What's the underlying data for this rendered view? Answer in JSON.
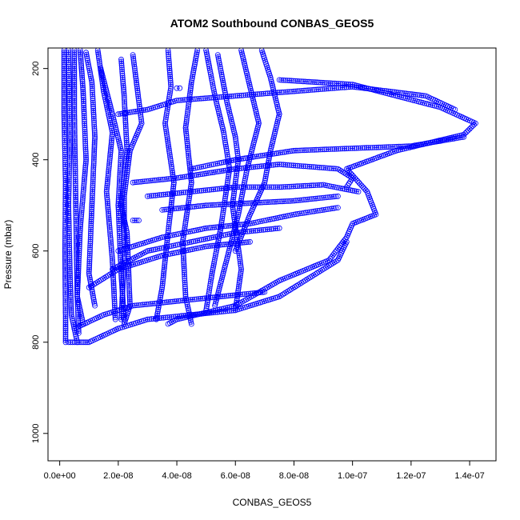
{
  "chart_data": {
    "type": "scatter",
    "title": "ATOM2 Southbound CONBAS_GEOS5",
    "xlabel": "CONBAS_GEOS5",
    "ylabel": "Pressure (mbar)",
    "xlim": [
      -4e-09,
      1.49e-07
    ],
    "ylim": [
      1060,
      155
    ],
    "y_reversed": true,
    "x_ticks": [
      0,
      2e-08,
      4e-08,
      6e-08,
      8e-08,
      1e-07,
      1.2e-07,
      1.4e-07
    ],
    "x_tick_labels": [
      "0.0e+00",
      "2.0e-08",
      "4.0e-08",
      "6.0e-08",
      "8.0e-08",
      "1.0e-07",
      "1.2e-07",
      "1.4e-07"
    ],
    "y_ticks": [
      200,
      400,
      600,
      800,
      1000
    ],
    "y_tick_labels": [
      "200",
      "400",
      "600",
      "800",
      "1000"
    ],
    "grid": false,
    "legend": "none",
    "marker": "open-circle",
    "connector": "dashed",
    "color": "#0000ff",
    "series": [
      {
        "points": [
          [
            1.5e-09,
            160
          ],
          [
            1.5e-09,
            300
          ],
          [
            2e-09,
            450
          ],
          [
            1.8e-09,
            600
          ],
          [
            2e-09,
            740
          ],
          [
            2e-09,
            800
          ]
        ]
      },
      {
        "points": [
          [
            3e-09,
            160
          ],
          [
            3.5e-09,
            350
          ],
          [
            3e-09,
            500
          ],
          [
            3.5e-09,
            650
          ],
          [
            4e-09,
            740
          ],
          [
            5e-09,
            770
          ],
          [
            6e-09,
            800
          ]
        ]
      },
      {
        "points": [
          [
            5e-09,
            160
          ],
          [
            5e-09,
            300
          ],
          [
            5.5e-09,
            500
          ],
          [
            6e-09,
            700
          ],
          [
            6.5e-09,
            780
          ]
        ]
      },
      {
        "points": [
          [
            7e-09,
            160
          ],
          [
            8e-09,
            250
          ],
          [
            9e-09,
            400
          ],
          [
            7e-09,
            550
          ],
          [
            6e-09,
            700
          ],
          [
            8e-09,
            760
          ]
        ]
      },
      {
        "points": [
          [
            9e-09,
            165
          ],
          [
            1.1e-08,
            230
          ],
          [
            1.2e-08,
            350
          ],
          [
            1.1e-08,
            500
          ],
          [
            1e-08,
            650
          ],
          [
            1.2e-08,
            720
          ]
        ]
      },
      {
        "points": [
          [
            1.3e-08,
            160
          ],
          [
            1.5e-08,
            250
          ],
          [
            1.8e-08,
            340
          ],
          [
            1.6e-08,
            470
          ],
          [
            1.8e-08,
            620
          ],
          [
            1.9e-08,
            750
          ]
        ]
      },
      {
        "points": [
          [
            1.4e-08,
            200
          ],
          [
            1.8e-08,
            300
          ],
          [
            2.1e-08,
            380
          ],
          [
            2e-08,
            500
          ],
          [
            2.1e-08,
            650
          ],
          [
            2.2e-08,
            750
          ]
        ]
      },
      {
        "points": [
          [
            2.1e-08,
            180
          ],
          [
            2.2e-08,
            260
          ],
          [
            2.3e-08,
            380
          ],
          [
            2.1e-08,
            500
          ],
          [
            2.3e-08,
            560
          ],
          [
            2.4e-08,
            720
          ],
          [
            2.2e-08,
            760
          ]
        ]
      },
      {
        "points": [
          [
            2.5e-08,
            170
          ],
          [
            2.7e-08,
            270
          ],
          [
            2.8e-08,
            320
          ],
          [
            2.4e-08,
            380
          ],
          [
            2.2e-08,
            480
          ],
          [
            2.2e-08,
            620
          ],
          [
            2.1e-08,
            750
          ]
        ]
      },
      {
        "points": [
          [
            4.7e-08,
            160
          ],
          [
            4.5e-08,
            230
          ],
          [
            4.3e-08,
            330
          ],
          [
            4.5e-08,
            450
          ],
          [
            4.2e-08,
            580
          ],
          [
            4.3e-08,
            700
          ],
          [
            4.5e-08,
            760
          ]
        ]
      },
      {
        "points": [
          [
            3.7e-08,
            160
          ],
          [
            3.8e-08,
            240
          ],
          [
            3.6e-08,
            320
          ],
          [
            3.9e-08,
            450
          ],
          [
            3.7e-08,
            560
          ],
          [
            3.5e-08,
            680
          ],
          [
            3.3e-08,
            750
          ]
        ]
      },
      {
        "points": [
          [
            5e-08,
            160
          ],
          [
            5.3e-08,
            260
          ],
          [
            5.6e-08,
            340
          ],
          [
            5.8e-08,
            420
          ],
          [
            5.5e-08,
            550
          ],
          [
            5.2e-08,
            650
          ],
          [
            5e-08,
            730
          ]
        ]
      },
      {
        "points": [
          [
            5.4e-08,
            170
          ],
          [
            5.7e-08,
            270
          ],
          [
            6e-08,
            350
          ],
          [
            6.1e-08,
            400
          ],
          [
            5.9e-08,
            500
          ],
          [
            6.2e-08,
            640
          ],
          [
            6e-08,
            730
          ]
        ]
      },
      {
        "points": [
          [
            6.2e-08,
            160
          ],
          [
            6.5e-08,
            240
          ],
          [
            6.8e-08,
            320
          ],
          [
            6.4e-08,
            420
          ],
          [
            6.1e-08,
            520
          ],
          [
            5.7e-08,
            620
          ],
          [
            5.3e-08,
            720
          ]
        ]
      },
      {
        "points": [
          [
            6.9e-08,
            160
          ],
          [
            7.2e-08,
            220
          ],
          [
            7.5e-08,
            300
          ],
          [
            7.2e-08,
            380
          ],
          [
            7e-08,
            450
          ],
          [
            6.5e-08,
            520
          ],
          [
            6e-08,
            600
          ]
        ]
      },
      {
        "points": [
          [
            7.5e-08,
            225
          ],
          [
            1e-07,
            235
          ],
          [
            1.3e-07,
            285
          ],
          [
            1.42e-07,
            320
          ],
          [
            1.38e-07,
            345
          ],
          [
            1.15e-07,
            380
          ],
          [
            9.8e-08,
            420
          ],
          [
            1.05e-07,
            470
          ],
          [
            1.08e-07,
            520
          ],
          [
            1e-07,
            540
          ],
          [
            9.8e-08,
            570
          ],
          [
            9.2e-08,
            620
          ],
          [
            7.5e-08,
            665
          ],
          [
            6e-08,
            720
          ],
          [
            4e-08,
            750
          ],
          [
            3.7e-08,
            760
          ]
        ]
      },
      {
        "points": [
          [
            2e-08,
            300
          ],
          [
            3e-08,
            290
          ],
          [
            4e-08,
            270
          ],
          [
            6e-08,
            260
          ],
          [
            8e-08,
            250
          ],
          [
            1e-07,
            240
          ],
          [
            1.25e-07,
            260
          ],
          [
            1.35e-07,
            290
          ]
        ]
      },
      {
        "points": [
          [
            4.5e-08,
            420
          ],
          [
            6e-08,
            400
          ],
          [
            8e-08,
            380
          ],
          [
            1e-07,
            375
          ],
          [
            1.2e-07,
            370
          ],
          [
            1.38e-07,
            350
          ]
        ]
      },
      {
        "points": [
          [
            2.5e-08,
            450
          ],
          [
            4e-08,
            440
          ],
          [
            6e-08,
            420
          ],
          [
            7.5e-08,
            410
          ],
          [
            9.5e-08,
            420
          ],
          [
            1e-07,
            440
          ],
          [
            9.8e-08,
            460
          ]
        ]
      },
      {
        "points": [
          [
            3e-08,
            480
          ],
          [
            4.5e-08,
            470
          ],
          [
            6e-08,
            460
          ],
          [
            7.5e-08,
            460
          ],
          [
            9e-08,
            455
          ],
          [
            1.02e-07,
            470
          ]
        ]
      },
      {
        "points": [
          [
            3.5e-08,
            510
          ],
          [
            5e-08,
            500
          ],
          [
            6.5e-08,
            495
          ],
          [
            8e-08,
            490
          ],
          [
            9.5e-08,
            480
          ]
        ]
      },
      {
        "points": [
          [
            2e-08,
            600
          ],
          [
            3.5e-08,
            570
          ],
          [
            5e-08,
            550
          ],
          [
            6.5e-08,
            540
          ],
          [
            8e-08,
            520
          ],
          [
            9.5e-08,
            505
          ]
        ]
      },
      {
        "points": [
          [
            1.8e-08,
            640
          ],
          [
            3e-08,
            600
          ],
          [
            4.5e-08,
            580
          ],
          [
            6e-08,
            560
          ],
          [
            7.5e-08,
            550
          ]
        ]
      },
      {
        "points": [
          [
            1e-08,
            680
          ],
          [
            2e-08,
            640
          ],
          [
            3.5e-08,
            610
          ],
          [
            5e-08,
            590
          ],
          [
            6.5e-08,
            580
          ]
        ]
      },
      {
        "points": [
          [
            5e-09,
            770
          ],
          [
            1.5e-08,
            740
          ],
          [
            2.5e-08,
            720
          ],
          [
            4e-08,
            710
          ],
          [
            5.5e-08,
            700
          ],
          [
            7e-08,
            690
          ]
        ]
      },
      {
        "points": [
          [
            3e-09,
            800
          ],
          [
            8e-09,
            800
          ],
          [
            1e-08,
            800
          ],
          [
            2e-08,
            770
          ],
          [
            3e-08,
            750
          ],
          [
            4.5e-08,
            740
          ],
          [
            6e-08,
            730
          ],
          [
            7.5e-08,
            700
          ],
          [
            8.5e-08,
            660
          ],
          [
            9.5e-08,
            620
          ],
          [
            9.8e-08,
            580
          ]
        ]
      },
      {
        "points": [
          [
            2.5e-08,
            533
          ],
          [
            2.7e-08,
            533
          ]
        ]
      },
      {
        "points": [
          [
            4e-08,
            243
          ],
          [
            4.1e-08,
            243
          ]
        ]
      }
    ]
  }
}
